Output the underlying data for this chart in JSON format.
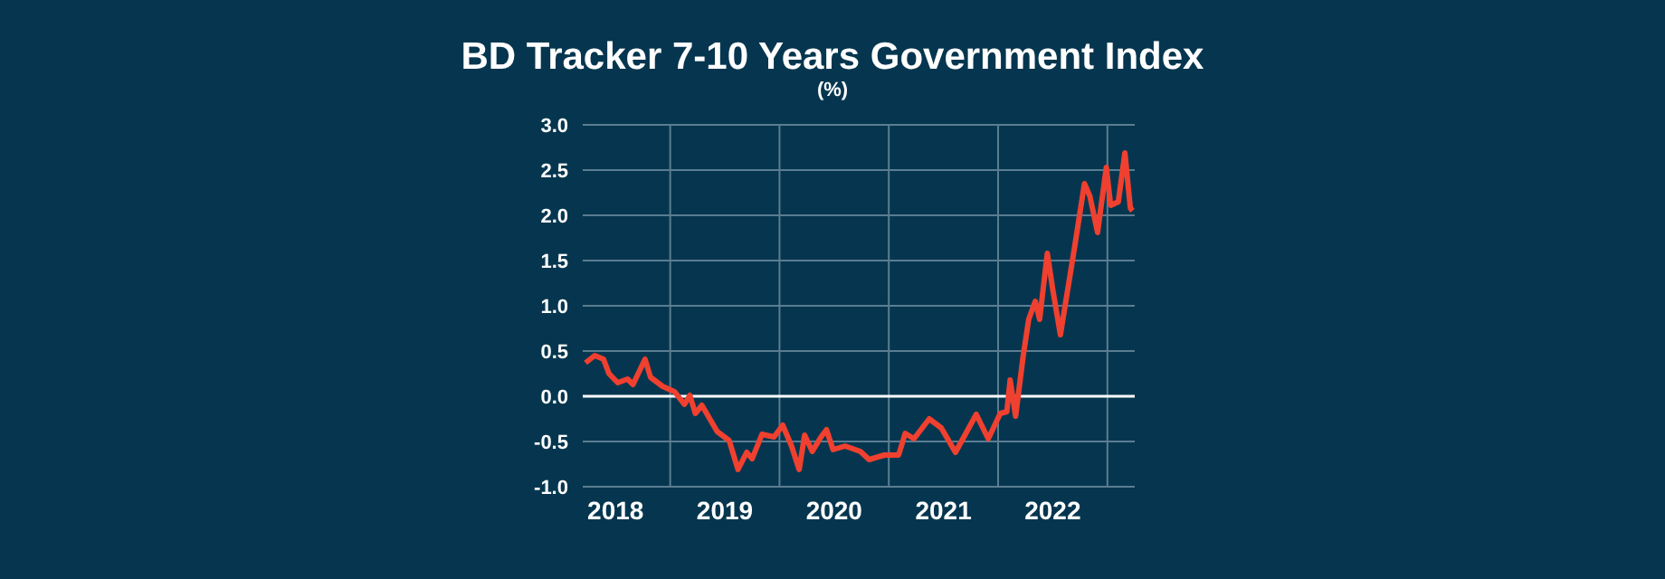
{
  "chart_data": {
    "type": "line",
    "title": "BD Tracker 7-10 Years Government Index",
    "subtitle": "(%)",
    "x": [
      2018.225,
      2018.31,
      2018.39,
      2018.44,
      2018.52,
      2018.61,
      2018.66,
      2018.77,
      2018.82,
      2018.93,
      2019.04,
      2019.13,
      2019.18,
      2019.23,
      2019.29,
      2019.43,
      2019.54,
      2019.62,
      2019.7,
      2019.75,
      2019.84,
      2019.95,
      2020.03,
      2020.11,
      2020.18,
      2020.23,
      2020.3,
      2020.38,
      2020.43,
      2020.49,
      2020.6,
      2020.74,
      2020.82,
      2020.96,
      2021.09,
      2021.15,
      2021.23,
      2021.37,
      2021.48,
      2021.61,
      2021.8,
      2021.91,
      2022.02,
      2022.08,
      2022.11,
      2022.16,
      2022.23,
      2022.28,
      2022.34,
      2022.38,
      2022.45,
      2022.5,
      2022.57,
      2022.7,
      2022.79,
      2022.84,
      2022.91,
      2022.99,
      2023.03,
      2023.1,
      2023.16,
      2023.21,
      2023.23
    ],
    "series": [
      {
        "color": "#f0402f",
        "values": [
          0.37,
          0.45,
          0.41,
          0.25,
          0.15,
          0.19,
          0.13,
          0.41,
          0.21,
          0.11,
          0.05,
          -0.09,
          0.01,
          -0.19,
          -0.1,
          -0.39,
          -0.49,
          -0.81,
          -0.62,
          -0.69,
          -0.42,
          -0.45,
          -0.32,
          -0.55,
          -0.81,
          -0.43,
          -0.61,
          -0.45,
          -0.37,
          -0.59,
          -0.55,
          -0.61,
          -0.7,
          -0.65,
          -0.65,
          -0.41,
          -0.47,
          -0.25,
          -0.35,
          -0.62,
          -0.2,
          -0.47,
          -0.19,
          -0.17,
          0.18,
          -0.22,
          0.45,
          0.85,
          1.05,
          0.85,
          1.58,
          1.18,
          0.68,
          1.65,
          2.35,
          2.21,
          1.81,
          2.53,
          2.11,
          2.15,
          2.69,
          2.08,
          2.05
        ]
      }
    ],
    "xlim": [
      2018.2,
      2023.25
    ],
    "xticks": [
      {
        "value": 2018.5,
        "label": "2018"
      },
      {
        "value": 2019,
        "label": null
      },
      {
        "value": 2019.5,
        "label": "2019"
      },
      {
        "value": 2020,
        "label": null
      },
      {
        "value": 2020.5,
        "label": "2020"
      },
      {
        "value": 2021,
        "label": null
      },
      {
        "value": 2021.5,
        "label": "2021"
      },
      {
        "value": 2022,
        "label": null
      },
      {
        "value": 2022.5,
        "label": "2022"
      },
      {
        "value": 2023,
        "label": null
      }
    ],
    "ylim": [
      -1,
      3
    ],
    "yticks": [
      {
        "value": -1,
        "label": "-1.0"
      },
      {
        "value": -0.5,
        "label": "-0.5"
      },
      {
        "value": 0,
        "label": "0.0"
      },
      {
        "value": 0.5,
        "label": "0.5"
      },
      {
        "value": 1,
        "label": "1.0"
      },
      {
        "value": 1.5,
        "label": "1.5"
      },
      {
        "value": 2,
        "label": "2.0"
      },
      {
        "value": 2.5,
        "label": "2.5"
      },
      {
        "value": 3,
        "label": "3.0"
      }
    ],
    "ref_lines": [
      {
        "axis": "y",
        "value": 0,
        "label": null,
        "color": "#ffffff"
      }
    ],
    "grid": true,
    "marker": "none",
    "line_style": "solid"
  }
}
